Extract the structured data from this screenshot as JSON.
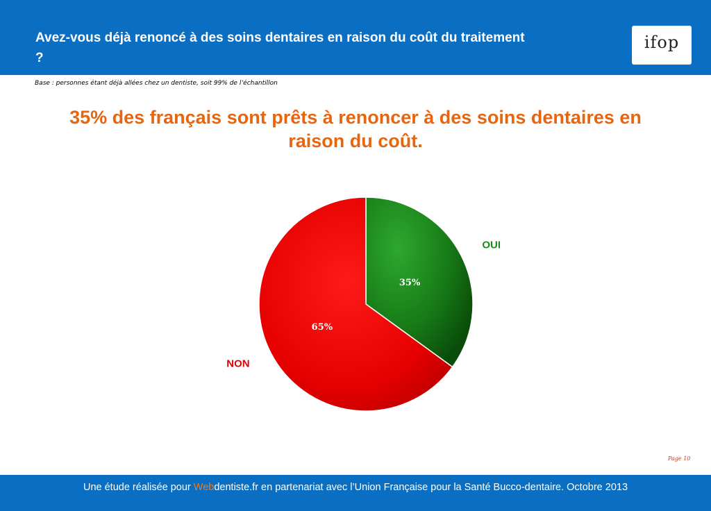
{
  "header": {
    "title": "Avez-vous déjà renoncé à des soins dentaires en raison du coût du traitement ?",
    "logo_text": "ifop"
  },
  "base_note": "Base : personnes étant déjà allées chez un dentiste, soit 99% de l’échantillon",
  "headline": "35% des français sont prêts à renoncer à des soins dentaires en raison du coût.",
  "chart_data": {
    "type": "pie",
    "slices": [
      {
        "label": "OUI",
        "value": 35,
        "value_label": "35%",
        "color": "#1e8a1e"
      },
      {
        "label": "NON",
        "value": 65,
        "value_label": "65%",
        "color": "#ee1111"
      }
    ],
    "start_angle": "12 o'clock",
    "direction": "clockwise"
  },
  "page_number": "Page 10",
  "footer": {
    "prefix": "Une étude réalisée pour ",
    "web_part1": "Web",
    "web_part2": "dentiste.fr",
    "suffix": " en partenariat avec l’Union Française pour la Santé Bucco-dentaire. Octobre 2013"
  }
}
